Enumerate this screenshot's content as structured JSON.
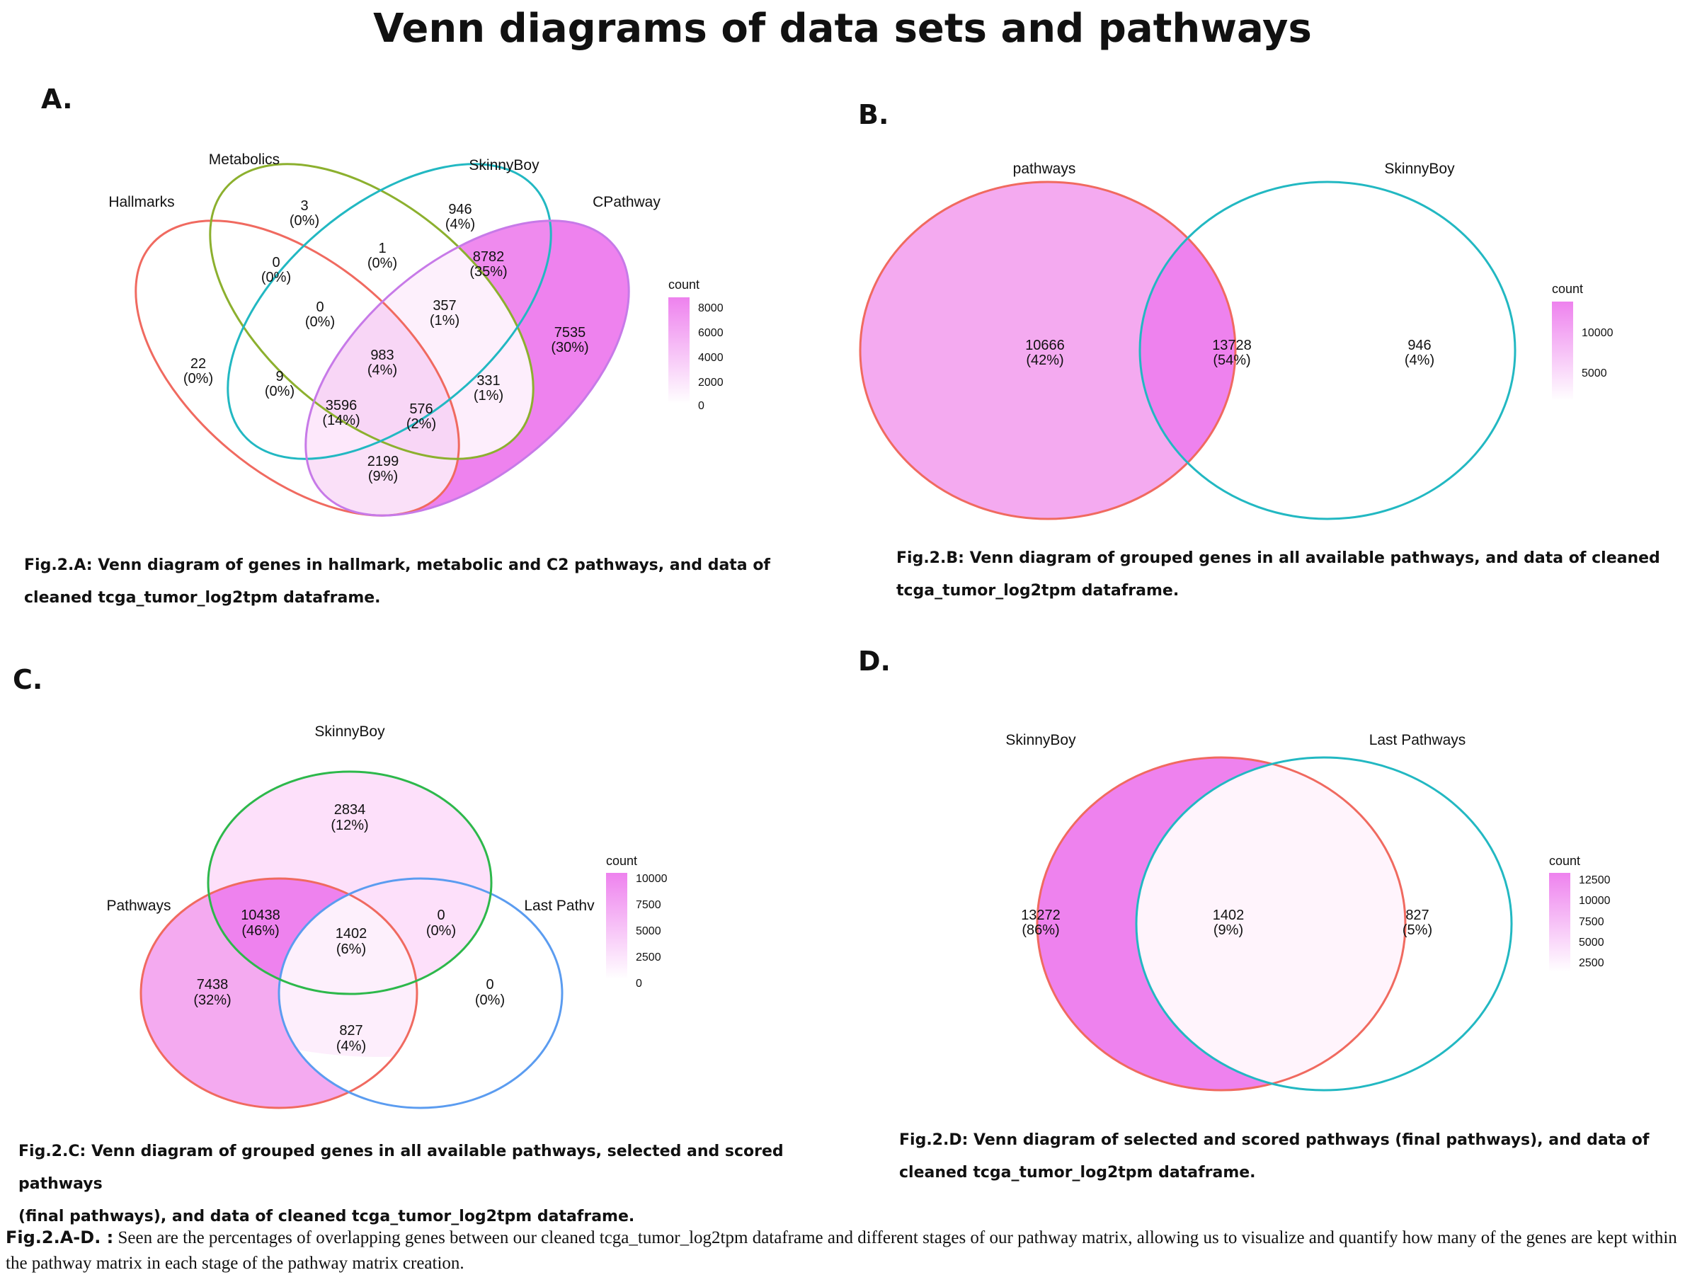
{
  "title": "Venn diagrams of data sets and pathways",
  "panels": {
    "a": {
      "letter": "A.",
      "sets": [
        "Hallmarks",
        "Metabolics",
        "SkinnyBoy",
        "CPathway"
      ],
      "regions": [
        {
          "count": "3",
          "pct": "(0%)",
          "value": 3
        },
        {
          "count": "946",
          "pct": "(4%)",
          "value": 946
        },
        {
          "count": "0",
          "pct": "(0%)",
          "value": 0
        },
        {
          "count": "1",
          "pct": "(0%)",
          "value": 1
        },
        {
          "count": "8782",
          "pct": "(35%)",
          "value": 8782
        },
        {
          "count": "0",
          "pct": "(0%)",
          "value": 0
        },
        {
          "count": "357",
          "pct": "(1%)",
          "value": 357
        },
        {
          "count": "22",
          "pct": "(0%)",
          "value": 22
        },
        {
          "count": "983",
          "pct": "(4%)",
          "value": 983
        },
        {
          "count": "7535",
          "pct": "(30%)",
          "value": 7535
        },
        {
          "count": "9",
          "pct": "(0%)",
          "value": 9
        },
        {
          "count": "331",
          "pct": "(1%)",
          "value": 331
        },
        {
          "count": "3596",
          "pct": "(14%)",
          "value": 3596
        },
        {
          "count": "576",
          "pct": "(2%)",
          "value": 576
        },
        {
          "count": "2199",
          "pct": "(9%)",
          "value": 2199
        }
      ],
      "legend": {
        "title": "count",
        "ticks": [
          "8000",
          "6000",
          "4000",
          "2000",
          "0"
        ]
      },
      "caption_lines": [
        "Fig.2.A: Venn diagram of genes in hallmark, metabolic and C2 pathways, and data of",
        "cleaned tcga_tumor_log2tpm dataframe."
      ]
    },
    "b": {
      "letter": "B.",
      "sets": [
        "pathways",
        "SkinnyBoy"
      ],
      "regions": [
        {
          "count": "10666",
          "pct": "(42%)",
          "value": 10666
        },
        {
          "count": "13728",
          "pct": "(54%)",
          "value": 13728
        },
        {
          "count": "946",
          "pct": "(4%)",
          "value": 946
        }
      ],
      "legend": {
        "title": "count",
        "ticks": [
          "10000",
          "5000"
        ]
      },
      "caption_lines": [
        "Fig.2.B: Venn diagram of grouped genes in all available pathways, and data of cleaned",
        "tcga_tumor_log2tpm dataframe."
      ]
    },
    "c": {
      "letter": "C.",
      "sets": [
        "SkinnyBoy",
        "Pathways",
        "Last Pathv"
      ],
      "regions": [
        {
          "count": "2834",
          "pct": "(12%)",
          "value": 2834
        },
        {
          "count": "10438",
          "pct": "(46%)",
          "value": 10438
        },
        {
          "count": "0",
          "pct": "(0%)",
          "value": 0
        },
        {
          "count": "1402",
          "pct": "(6%)",
          "value": 1402
        },
        {
          "count": "7438",
          "pct": "(32%)",
          "value": 7438
        },
        {
          "count": "0",
          "pct": "(0%)",
          "value": 0
        },
        {
          "count": "827",
          "pct": "(4%)",
          "value": 827
        }
      ],
      "legend": {
        "title": "count",
        "ticks": [
          "10000",
          "7500",
          "5000",
          "2500",
          "0"
        ]
      },
      "caption_lines": [
        "Fig.2.C: Venn diagram of grouped genes in all available pathways, selected and scored pathways",
        "(final pathways), and data of cleaned tcga_tumor_log2tpm dataframe."
      ]
    },
    "d": {
      "letter": "D.",
      "sets": [
        "SkinnyBoy",
        "Last Pathways"
      ],
      "regions": [
        {
          "count": "13272",
          "pct": "(86%)",
          "value": 13272
        },
        {
          "count": "1402",
          "pct": "(9%)",
          "value": 1402
        },
        {
          "count": "827",
          "pct": "(5%)",
          "value": 827
        }
      ],
      "legend": {
        "title": "count",
        "ticks": [
          "12500",
          "10000",
          "7500",
          "5000",
          "2500"
        ]
      },
      "caption_lines": [
        "Fig.2.D: Venn diagram of selected and scored pathways (final pathways), and data of",
        "cleaned tcga_tumor_log2tpm dataframe."
      ]
    }
  },
  "bottom_caption": {
    "lead": "Fig.2.A-D. :",
    "text": " Seen are the percentages of overlapping genes between our cleaned  tcga_tumor_log2tpm dataframe and different stages of our pathway matrix, allowing us to visualize and quantify how many of the genes are kept within the pathway matrix in each stage of the pathway matrix creation."
  },
  "colors": {
    "high": "#ee82ee",
    "low": "#fff6fc",
    "red": "#f06a60",
    "olive": "#8cb02e",
    "cyan": "#22b8c2",
    "purple": "#c77ae8",
    "green": "#2db84b",
    "blue": "#5b9cf0"
  }
}
